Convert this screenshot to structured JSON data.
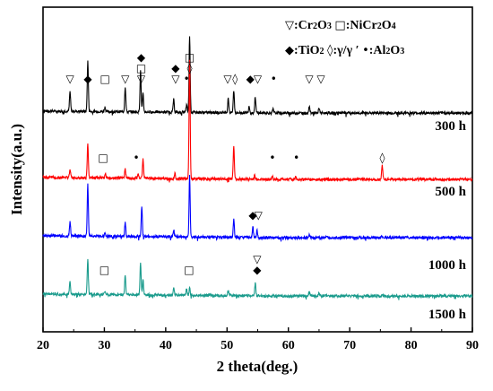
{
  "chart_data": {
    "type": "line",
    "title": "",
    "xlabel": "2 theta(deg.)",
    "ylabel": "Intensity(a.u.)",
    "xlim": [
      20,
      90
    ],
    "xticks": [
      20,
      30,
      40,
      50,
      60,
      70,
      80,
      90
    ],
    "grid": false,
    "legend": {
      "placement": "top-right",
      "line1": [
        {
          "symbol": "▽",
          "label": ":Cr",
          "sub": "2",
          "label2": "O",
          "sub2": "3"
        },
        {
          "symbol": "□",
          "label": ":NiCr",
          "sub": "2",
          "label2": "O",
          "sub2": "4"
        }
      ],
      "line2": [
        {
          "symbol": "◆",
          "label": ":TiO",
          "sub": "2",
          "label2": "",
          "sub2": ""
        },
        {
          "symbol": "◊",
          "label": ":γ/γ ′",
          "sub": "",
          "label2": "",
          "sub2": ""
        },
        {
          "symbol": "•",
          "label": ":Al",
          "sub": "2",
          "label2": "O",
          "sub2": "3"
        }
      ]
    },
    "series": [
      {
        "name": "300 h",
        "color": "#000000",
        "peaks": [
          [
            24.4,
            22
          ],
          [
            27.3,
            56
          ],
          [
            30.1,
            5
          ],
          [
            33.4,
            28
          ],
          [
            35.9,
            46
          ],
          [
            36.3,
            20
          ],
          [
            41.3,
            14
          ],
          [
            43.4,
            8
          ],
          [
            43.9,
            86
          ],
          [
            50.2,
            16
          ],
          [
            51.1,
            25
          ],
          [
            53.6,
            8
          ],
          [
            54.6,
            18
          ],
          [
            57.5,
            4
          ],
          [
            63.4,
            8
          ],
          [
            65.0,
            6
          ]
        ]
      },
      {
        "name": "500 h",
        "color": "#ff0000",
        "peaks": [
          [
            24.4,
            10
          ],
          [
            27.3,
            38
          ],
          [
            30.2,
            4
          ],
          [
            33.4,
            10
          ],
          [
            35.5,
            5
          ],
          [
            36.3,
            22
          ],
          [
            41.5,
            6
          ],
          [
            43.9,
            132
          ],
          [
            51.1,
            38
          ],
          [
            54.5,
            4
          ],
          [
            57.4,
            3
          ],
          [
            61.2,
            3
          ],
          [
            75.3,
            16
          ]
        ]
      },
      {
        "name": "1000 h",
        "color": "#0000ff",
        "peaks": [
          [
            24.4,
            16
          ],
          [
            27.3,
            58
          ],
          [
            30.1,
            4
          ],
          [
            33.4,
            16
          ],
          [
            36.1,
            34
          ],
          [
            41.3,
            8
          ],
          [
            43.9,
            68
          ],
          [
            51.1,
            20
          ],
          [
            54.2,
            12
          ],
          [
            54.9,
            8
          ],
          [
            63.4,
            3
          ],
          [
            75.2,
            3
          ]
        ]
      },
      {
        "name": "1500 h",
        "color": "#1a9b8c",
        "peaks": [
          [
            24.4,
            14
          ],
          [
            27.3,
            40
          ],
          [
            30.1,
            4
          ],
          [
            33.4,
            22
          ],
          [
            35.9,
            36
          ],
          [
            36.3,
            18
          ],
          [
            41.3,
            9
          ],
          [
            43.4,
            7
          ],
          [
            43.9,
            8
          ],
          [
            50.2,
            6
          ],
          [
            54.6,
            14
          ],
          [
            63.4,
            4
          ],
          [
            65.0,
            3
          ]
        ]
      }
    ],
    "markers": [
      {
        "symbol": "▽",
        "x": 24.4,
        "row": 0,
        "level": 0
      },
      {
        "symbol": "◆",
        "x": 27.3,
        "row": 0,
        "level": 0
      },
      {
        "symbol": "□",
        "x": 30.1,
        "row": 0,
        "level": 0
      },
      {
        "symbol": "▽",
        "x": 33.4,
        "row": 0,
        "level": 0
      },
      {
        "symbol": "▽",
        "x": 36.0,
        "row": 0,
        "level": 0
      },
      {
        "symbol": "□",
        "x": 36.0,
        "row": 0,
        "level": 1
      },
      {
        "symbol": "◆",
        "x": 36.0,
        "row": 0,
        "level": 2
      },
      {
        "symbol": "▽",
        "x": 41.6,
        "row": 0,
        "level": 0
      },
      {
        "symbol": "◆",
        "x": 41.6,
        "row": 0,
        "level": 1
      },
      {
        "symbol": "•",
        "x": 43.4,
        "row": 0,
        "level": 0
      },
      {
        "symbol": "◊",
        "x": 43.9,
        "row": 0,
        "level": 1
      },
      {
        "symbol": "□",
        "x": 43.9,
        "row": 0,
        "level": 2
      },
      {
        "symbol": "▽",
        "x": 50.1,
        "row": 0,
        "level": 0
      },
      {
        "symbol": "◊",
        "x": 51.3,
        "row": 0,
        "level": 0
      },
      {
        "symbol": "◆",
        "x": 53.8,
        "row": 0,
        "level": 0
      },
      {
        "symbol": "▽",
        "x": 55.0,
        "row": 0,
        "level": 0
      },
      {
        "symbol": "•",
        "x": 57.6,
        "row": 0,
        "level": 0
      },
      {
        "symbol": "▽",
        "x": 63.4,
        "row": 0,
        "level": 0
      },
      {
        "symbol": "▽",
        "x": 65.3,
        "row": 0,
        "level": 0
      },
      {
        "symbol": "□",
        "x": 29.8,
        "row": 1,
        "level": 0
      },
      {
        "symbol": "•",
        "x": 35.2,
        "row": 1,
        "level": 0
      },
      {
        "symbol": "•",
        "x": 57.4,
        "row": 1,
        "level": 0
      },
      {
        "symbol": "•",
        "x": 61.3,
        "row": 1,
        "level": 0
      },
      {
        "symbol": "◊",
        "x": 75.3,
        "row": 1,
        "level": 0
      },
      {
        "symbol": "◆",
        "x": 54.2,
        "row": 2,
        "level": 0
      },
      {
        "symbol": "▽",
        "x": 55.1,
        "row": 2,
        "level": 0
      },
      {
        "symbol": "□",
        "x": 30.0,
        "row": 3,
        "level": 0
      },
      {
        "symbol": "□",
        "x": 43.8,
        "row": 3,
        "level": 0
      },
      {
        "symbol": "▽",
        "x": 54.9,
        "row": 3,
        "level": 1
      },
      {
        "symbol": "◆",
        "x": 54.9,
        "row": 3,
        "level": 0
      }
    ]
  }
}
